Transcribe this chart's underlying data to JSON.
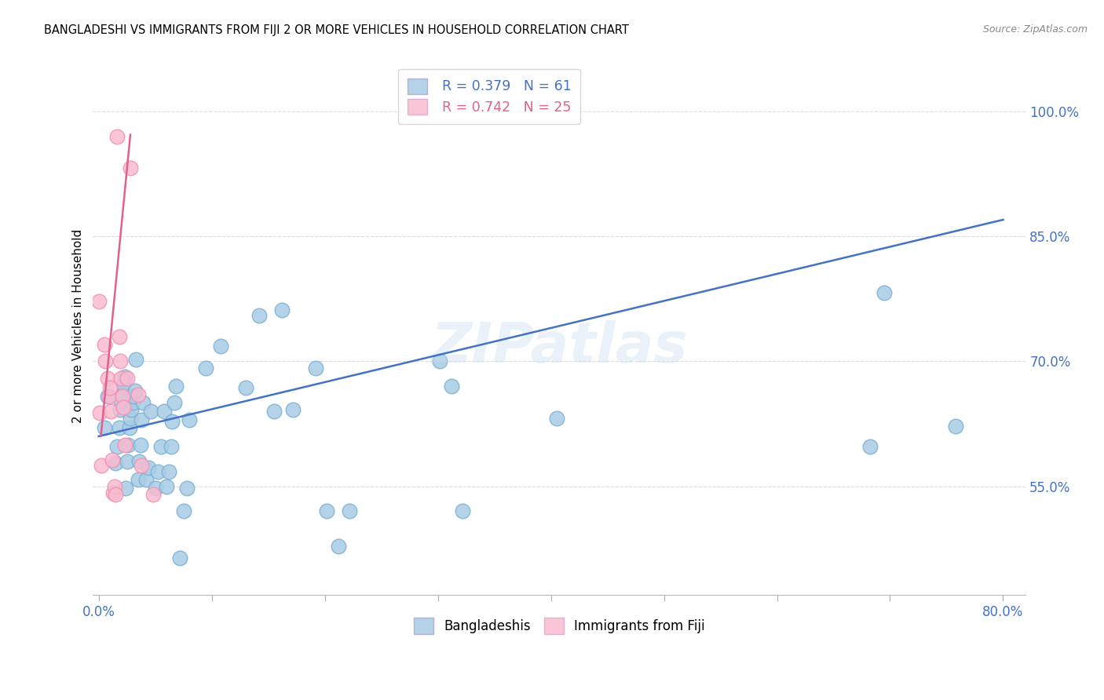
{
  "title": "BANGLADESHI VS IMMIGRANTS FROM FIJI 2 OR MORE VEHICLES IN HOUSEHOLD CORRELATION CHART",
  "source": "Source: ZipAtlas.com",
  "ylabel": "2 or more Vehicles in Household",
  "xlim": [
    -0.005,
    0.82
  ],
  "ylim": [
    0.42,
    1.065
  ],
  "xticks": [
    0.0,
    0.1,
    0.2,
    0.3,
    0.4,
    0.5,
    0.6,
    0.7,
    0.8
  ],
  "xticklabels": [
    "0.0%",
    "",
    "",
    "",
    "",
    "",
    "",
    "",
    "80.0%"
  ],
  "yticks": [
    0.55,
    0.7,
    0.85,
    1.0
  ],
  "yticklabels": [
    "55.0%",
    "70.0%",
    "85.0%",
    "100.0%"
  ],
  "legend_blue_r": "R = 0.379",
  "legend_blue_n": "N = 61",
  "legend_pink_r": "R = 0.742",
  "legend_pink_n": "N = 25",
  "blue_color": "#a8cce4",
  "pink_color": "#f8bbd0",
  "blue_edge": "#7ab0d4",
  "pink_edge": "#f48fb1",
  "trend_blue_color": "#4472c4",
  "trend_pink_color": "#e06090",
  "watermark": "ZIPatlas",
  "blue_scatter_x": [
    0.005,
    0.008,
    0.015,
    0.016,
    0.018,
    0.019,
    0.02,
    0.021,
    0.022,
    0.022,
    0.023,
    0.024,
    0.025,
    0.026,
    0.027,
    0.028,
    0.029,
    0.03,
    0.031,
    0.032,
    0.033,
    0.035,
    0.036,
    0.037,
    0.038,
    0.039,
    0.042,
    0.044,
    0.046,
    0.05,
    0.052,
    0.055,
    0.058,
    0.06,
    0.062,
    0.064,
    0.065,
    0.067,
    0.068,
    0.072,
    0.075,
    0.078,
    0.08,
    0.095,
    0.108,
    0.13,
    0.142,
    0.155,
    0.162,
    0.172,
    0.192,
    0.202,
    0.212,
    0.222,
    0.302,
    0.312,
    0.322,
    0.405,
    0.682,
    0.695,
    0.758
  ],
  "blue_scatter_y": [
    0.62,
    0.658,
    0.578,
    0.598,
    0.62,
    0.642,
    0.652,
    0.66,
    0.662,
    0.672,
    0.682,
    0.548,
    0.58,
    0.6,
    0.62,
    0.632,
    0.642,
    0.65,
    0.658,
    0.665,
    0.702,
    0.558,
    0.58,
    0.6,
    0.63,
    0.65,
    0.558,
    0.572,
    0.64,
    0.548,
    0.568,
    0.598,
    0.64,
    0.55,
    0.568,
    0.598,
    0.628,
    0.65,
    0.67,
    0.464,
    0.52,
    0.548,
    0.63,
    0.692,
    0.718,
    0.668,
    0.755,
    0.64,
    0.762,
    0.642,
    0.692,
    0.52,
    0.478,
    0.52,
    0.7,
    0.67,
    0.52,
    0.632,
    0.598,
    0.782,
    0.622
  ],
  "pink_scatter_x": [
    0.0,
    0.001,
    0.002,
    0.005,
    0.006,
    0.008,
    0.009,
    0.01,
    0.011,
    0.012,
    0.013,
    0.014,
    0.015,
    0.016,
    0.018,
    0.019,
    0.02,
    0.021,
    0.022,
    0.023,
    0.025,
    0.028,
    0.035,
    0.038,
    0.048
  ],
  "pink_scatter_y": [
    0.772,
    0.638,
    0.575,
    0.72,
    0.7,
    0.68,
    0.658,
    0.668,
    0.64,
    0.582,
    0.542,
    0.55,
    0.54,
    0.97,
    0.73,
    0.7,
    0.68,
    0.658,
    0.645,
    0.6,
    0.68,
    0.932,
    0.66,
    0.575,
    0.54
  ],
  "blue_trend_x0": 0.0,
  "blue_trend_x1": 0.8,
  "blue_trend_y0": 0.61,
  "blue_trend_y1": 0.87,
  "pink_trend_x0": 0.002,
  "pink_trend_x1": 0.028,
  "pink_trend_y0": 0.61,
  "pink_trend_y1": 0.972,
  "grid_color": "#dddddd",
  "tick_color": "#4472c4"
}
